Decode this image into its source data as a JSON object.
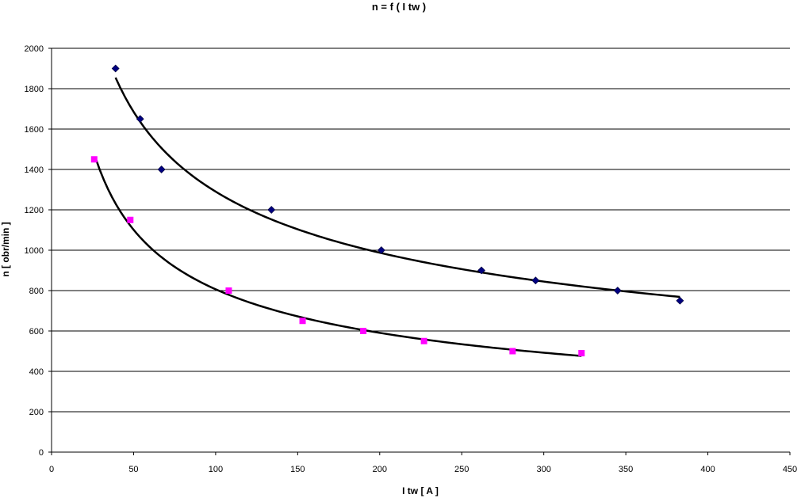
{
  "chart_data": {
    "type": "scatter",
    "title": "n = f ( I tw  )",
    "xlabel": "I tw    [ A   ]",
    "ylabel": "n  [ obr/min ]",
    "xlim": [
      0,
      450
    ],
    "ylim": [
      0,
      2000
    ],
    "xticks": [
      0,
      50,
      100,
      150,
      200,
      250,
      300,
      350,
      400,
      450
    ],
    "yticks": [
      0,
      200,
      400,
      600,
      800,
      1000,
      1200,
      1400,
      1600,
      1800,
      2000
    ],
    "grid": "horizontal",
    "legend": "none",
    "series": [
      {
        "marker": "diamond",
        "color": "#000080",
        "points": [
          [
            39,
            1900
          ],
          [
            54,
            1650
          ],
          [
            67,
            1400
          ],
          [
            134,
            1200
          ],
          [
            201,
            1000
          ],
          [
            262,
            900
          ],
          [
            295,
            850
          ],
          [
            345,
            800
          ],
          [
            383,
            750
          ]
        ],
        "trendline": {
          "type": "power",
          "from": 39,
          "to": 383
        }
      },
      {
        "marker": "square",
        "color": "#ff00ff",
        "points": [
          [
            26,
            1450
          ],
          [
            48,
            1150
          ],
          [
            108,
            800
          ],
          [
            153,
            650
          ],
          [
            190,
            600
          ],
          [
            227,
            550
          ],
          [
            281,
            500
          ],
          [
            323,
            490
          ]
        ],
        "trendline": {
          "type": "power",
          "from": 27,
          "to": 323
        }
      }
    ]
  }
}
